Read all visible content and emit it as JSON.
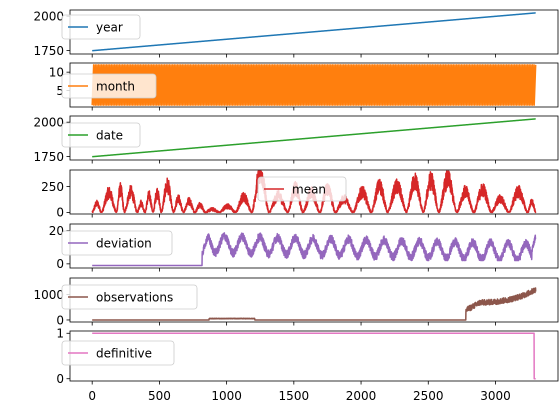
{
  "chart_data": {
    "type": "line",
    "layout": "stacked-subplots-shared-x",
    "x": {
      "lim": [
        -165,
        3465
      ],
      "ticks": [
        0,
        500,
        1000,
        1500,
        2000,
        2500,
        3000
      ]
    },
    "n_points": 3300,
    "panels": [
      {
        "series": {
          "name": "year",
          "color": "#1f77b4"
        },
        "legend": "upper left",
        "ylim": [
          1725,
          2045
        ],
        "yticks": [
          1750,
          2000
        ],
        "values": {
          "kind": "linear",
          "start": 1749,
          "end": 2024
        }
      },
      {
        "series": {
          "name": "month",
          "color": "#ff7f0e"
        },
        "legend": "center left",
        "ylim": [
          0.5,
          12.5
        ],
        "yticks": [
          5,
          10
        ],
        "values": {
          "kind": "monthly-cycle",
          "min": 1,
          "max": 12
        }
      },
      {
        "series": {
          "name": "date",
          "color": "#2ca02c"
        },
        "legend": "upper left",
        "ylim": [
          1725,
          2045
        ],
        "yticks": [
          1750,
          2000
        ],
        "values": {
          "kind": "linear",
          "start": 1749,
          "end": 2024
        }
      },
      {
        "series": {
          "name": "mean",
          "color": "#d62728"
        },
        "legend": "upper center",
        "ylim": [
          -15,
          410
        ],
        "yticks": [
          0,
          250
        ],
        "values": {
          "kind": "cycles",
          "cycle_starts": [
            0,
            70,
            180,
            240,
            335,
            393,
            453,
            514,
            604,
            678,
            763,
            841,
            946,
            1067,
            1187,
            1315,
            1455,
            1568,
            1693,
            1809,
            1941,
            2077,
            2198,
            2338,
            2463,
            2578,
            2712,
            2839,
            2970,
            3100,
            3240,
            3300
          ],
          "cycle_peaks": [
            86,
            190,
            220,
            200,
            90,
            160,
            190,
            260,
            130,
            110,
            70,
            30,
            60,
            150,
            380,
            160,
            230,
            190,
            230,
            130,
            195,
            255,
            250,
            300,
            310,
            320,
            200,
            220,
            130,
            200,
            100
          ],
          "min": 0,
          "max": 398
        }
      },
      {
        "series": {
          "name": "deviation",
          "color": "#9467bd"
        },
        "legend": "center left",
        "ylim": [
          -2.5,
          24
        ],
        "yticks": [
          0,
          20
        ],
        "values": {
          "kind": "constant-then-cycles",
          "constant": -1,
          "constant_until": 818,
          "min": 2,
          "max": 22,
          "end": 17
        }
      },
      {
        "series": {
          "name": "observations",
          "color": "#8c564b"
        },
        "legend": "center left",
        "ylim": [
          -80,
          1650
        ],
        "yticks": [
          0,
          1000
        ],
        "values": {
          "kind": "piecewise",
          "segments": [
            {
              "from": 0,
              "to": 2780,
              "value": 0,
              "bump": {
                "from": 870,
                "to": 1210,
                "value": 55
              }
            },
            {
              "from": 2780,
              "to": 3300,
              "start": 380,
              "end": 1200
            }
          ],
          "max": 1500
        }
      },
      {
        "series": {
          "name": "definitive",
          "color": "#e377c2"
        },
        "legend": "center left",
        "ylim": [
          -0.05,
          1.05
        ],
        "yticks": [
          0,
          1
        ],
        "values": {
          "kind": "step",
          "value": 1,
          "until": 3288,
          "after": 0
        }
      }
    ]
  }
}
